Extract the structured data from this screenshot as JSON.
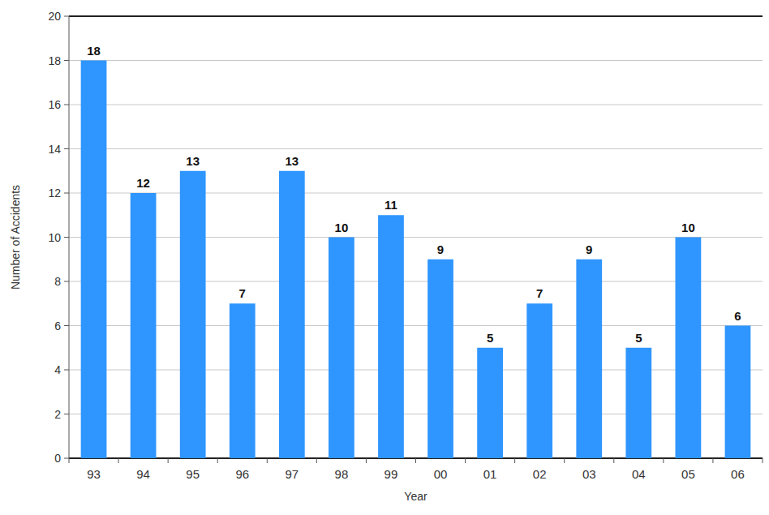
{
  "chart_data": {
    "type": "bar",
    "x_label": "Year",
    "y_label": "Number of Accidents",
    "categories": [
      "93",
      "94",
      "95",
      "96",
      "97",
      "98",
      "99",
      "00",
      "01",
      "02",
      "03",
      "04",
      "05",
      "06"
    ],
    "values": [
      18,
      12,
      13,
      7,
      13,
      10,
      11,
      9,
      5,
      7,
      9,
      5,
      10,
      6
    ],
    "color": "#2f96ff",
    "ylim": [
      0,
      20
    ],
    "yticks": [
      0,
      2,
      4,
      6,
      8,
      10,
      12,
      14,
      16,
      18,
      20
    ],
    "grid": true,
    "data_labels": true
  }
}
